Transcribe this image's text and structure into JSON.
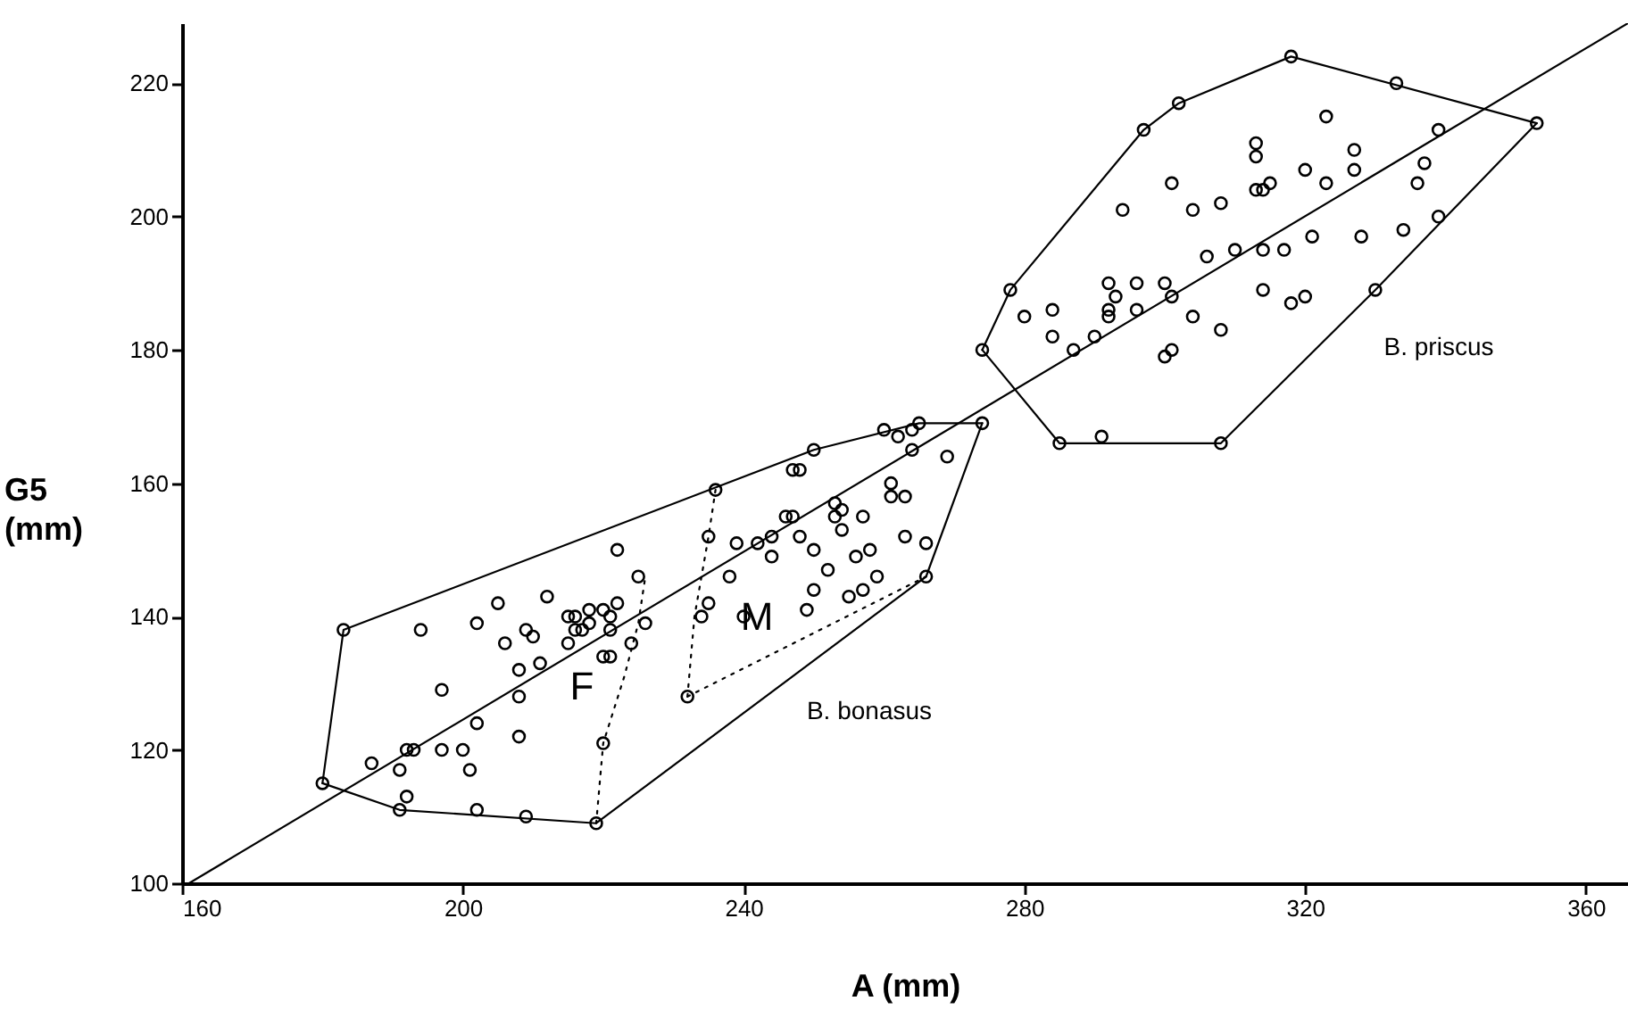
{
  "chart_data": {
    "type": "scatter",
    "xlabel": "A (mm)",
    "ylabel": "G5 (mm)",
    "xlim": [
      160,
      366
    ],
    "ylim": [
      100,
      229
    ],
    "xticks": [
      160,
      200,
      240,
      280,
      320,
      360
    ],
    "yticks": [
      100,
      120,
      140,
      160,
      180,
      200,
      220
    ],
    "marker": "circle",
    "line_style": "solid",
    "annotations": [
      "F",
      "M",
      "B. bonasus",
      "B. priscus"
    ],
    "series": [
      {
        "type": "line",
        "color": "#000000",
        "marker": "none",
        "x": [
          180,
          183,
          250,
          265,
          274
        ],
        "values": [
          115,
          138,
          165,
          169,
          169
        ]
      },
      {
        "type": "line",
        "color": "#000000",
        "marker": "none",
        "x": [
          180,
          191,
          219,
          266,
          274
        ],
        "values": [
          115,
          111,
          109,
          146,
          169
        ]
      },
      {
        "type": "line",
        "color": "#000000",
        "marker": "none",
        "x": [
          274,
          278,
          297,
          302,
          318,
          353
        ],
        "values": [
          180,
          189,
          213,
          217,
          224,
          214
        ]
      },
      {
        "type": "line",
        "color": "#000000",
        "marker": "none",
        "x": [
          274,
          285,
          308,
          330,
          353
        ],
        "values": [
          180,
          166,
          166,
          189,
          214
        ]
      },
      {
        "type": "line",
        "color": "#000000",
        "marker": "none",
        "x": [
          161,
          366
        ],
        "values": [
          100,
          229
        ]
      },
      {
        "type": "line",
        "color": "#000000",
        "marker": "none",
        "line_style": "dotted",
        "x": [
          219,
          220,
          223,
          225,
          226
        ],
        "values": [
          109,
          121,
          131,
          139,
          146
        ]
      },
      {
        "type": "line",
        "color": "#000000",
        "marker": "none",
        "line_style": "dotted",
        "x": [
          232,
          233,
          235,
          236
        ],
        "values": [
          128,
          140,
          152,
          159
        ]
      },
      {
        "type": "line",
        "color": "#000000",
        "marker": "none",
        "line_style": "dotted",
        "x": [
          232,
          249,
          266
        ],
        "values": [
          128,
          137,
          146
        ]
      },
      {
        "color": "#000000",
        "x": [
          180,
          183,
          187,
          191,
          191,
          192,
          192,
          193,
          194,
          197,
          197,
          200,
          201,
          202,
          202,
          202,
          205,
          206,
          208,
          208,
          208,
          209,
          210,
          209,
          211,
          212,
          215,
          215,
          216,
          216,
          217,
          218,
          218,
          220,
          221,
          221,
          220,
          221,
          220,
          219,
          222,
          222,
          224,
          225,
          226,
          232,
          234,
          235,
          235,
          236,
          238,
          239,
          240,
          242,
          244,
          244,
          246,
          247,
          247,
          248,
          248,
          249,
          250,
          250,
          250,
          252,
          253,
          253,
          254,
          254,
          255,
          256,
          257,
          257,
          258,
          259,
          260,
          261,
          261,
          262,
          263,
          263,
          264,
          264,
          265,
          266,
          266,
          269,
          274,
          274,
          278,
          280,
          284,
          284,
          285,
          287,
          290,
          291,
          292,
          292,
          293,
          292,
          294,
          296,
          296,
          297,
          300,
          300,
          301,
          301,
          301,
          302,
          304,
          304,
          306,
          308,
          308,
          308,
          310,
          313,
          313,
          313,
          314,
          314,
          314,
          315,
          317,
          318,
          318,
          320,
          320,
          321,
          323,
          323,
          327,
          327,
          328,
          330,
          333,
          334,
          336,
          337,
          339,
          339,
          353
        ],
        "values": [
          115,
          138,
          118,
          117,
          111,
          113,
          120,
          120,
          138,
          129,
          120,
          120,
          117,
          124,
          111,
          139,
          142,
          136,
          132,
          128,
          122,
          138,
          137,
          110,
          133,
          143,
          140,
          136,
          140,
          138,
          138,
          141,
          139,
          141,
          140,
          138,
          134,
          134,
          121,
          109,
          150,
          142,
          136,
          146,
          139,
          128,
          140,
          142,
          152,
          159,
          146,
          151,
          140,
          151,
          152,
          149,
          155,
          155,
          162,
          162,
          152,
          141,
          165,
          150,
          144,
          147,
          157,
          155,
          153,
          156,
          143,
          149,
          155,
          144,
          150,
          146,
          168,
          160,
          158,
          167,
          158,
          152,
          168,
          165,
          169,
          151,
          146,
          164,
          169,
          180,
          189,
          185,
          186,
          182,
          166,
          180,
          182,
          167,
          190,
          185,
          188,
          186,
          201,
          190,
          186,
          213,
          190,
          179,
          180,
          188,
          205,
          217,
          201,
          185,
          194,
          202,
          183,
          166,
          195,
          211,
          209,
          204,
          204,
          195,
          189,
          205,
          195,
          187,
          224,
          207,
          188,
          197,
          215,
          205,
          210,
          207,
          197,
          189,
          220,
          198,
          205,
          208,
          213,
          200,
          214
        ]
      }
    ]
  }
}
